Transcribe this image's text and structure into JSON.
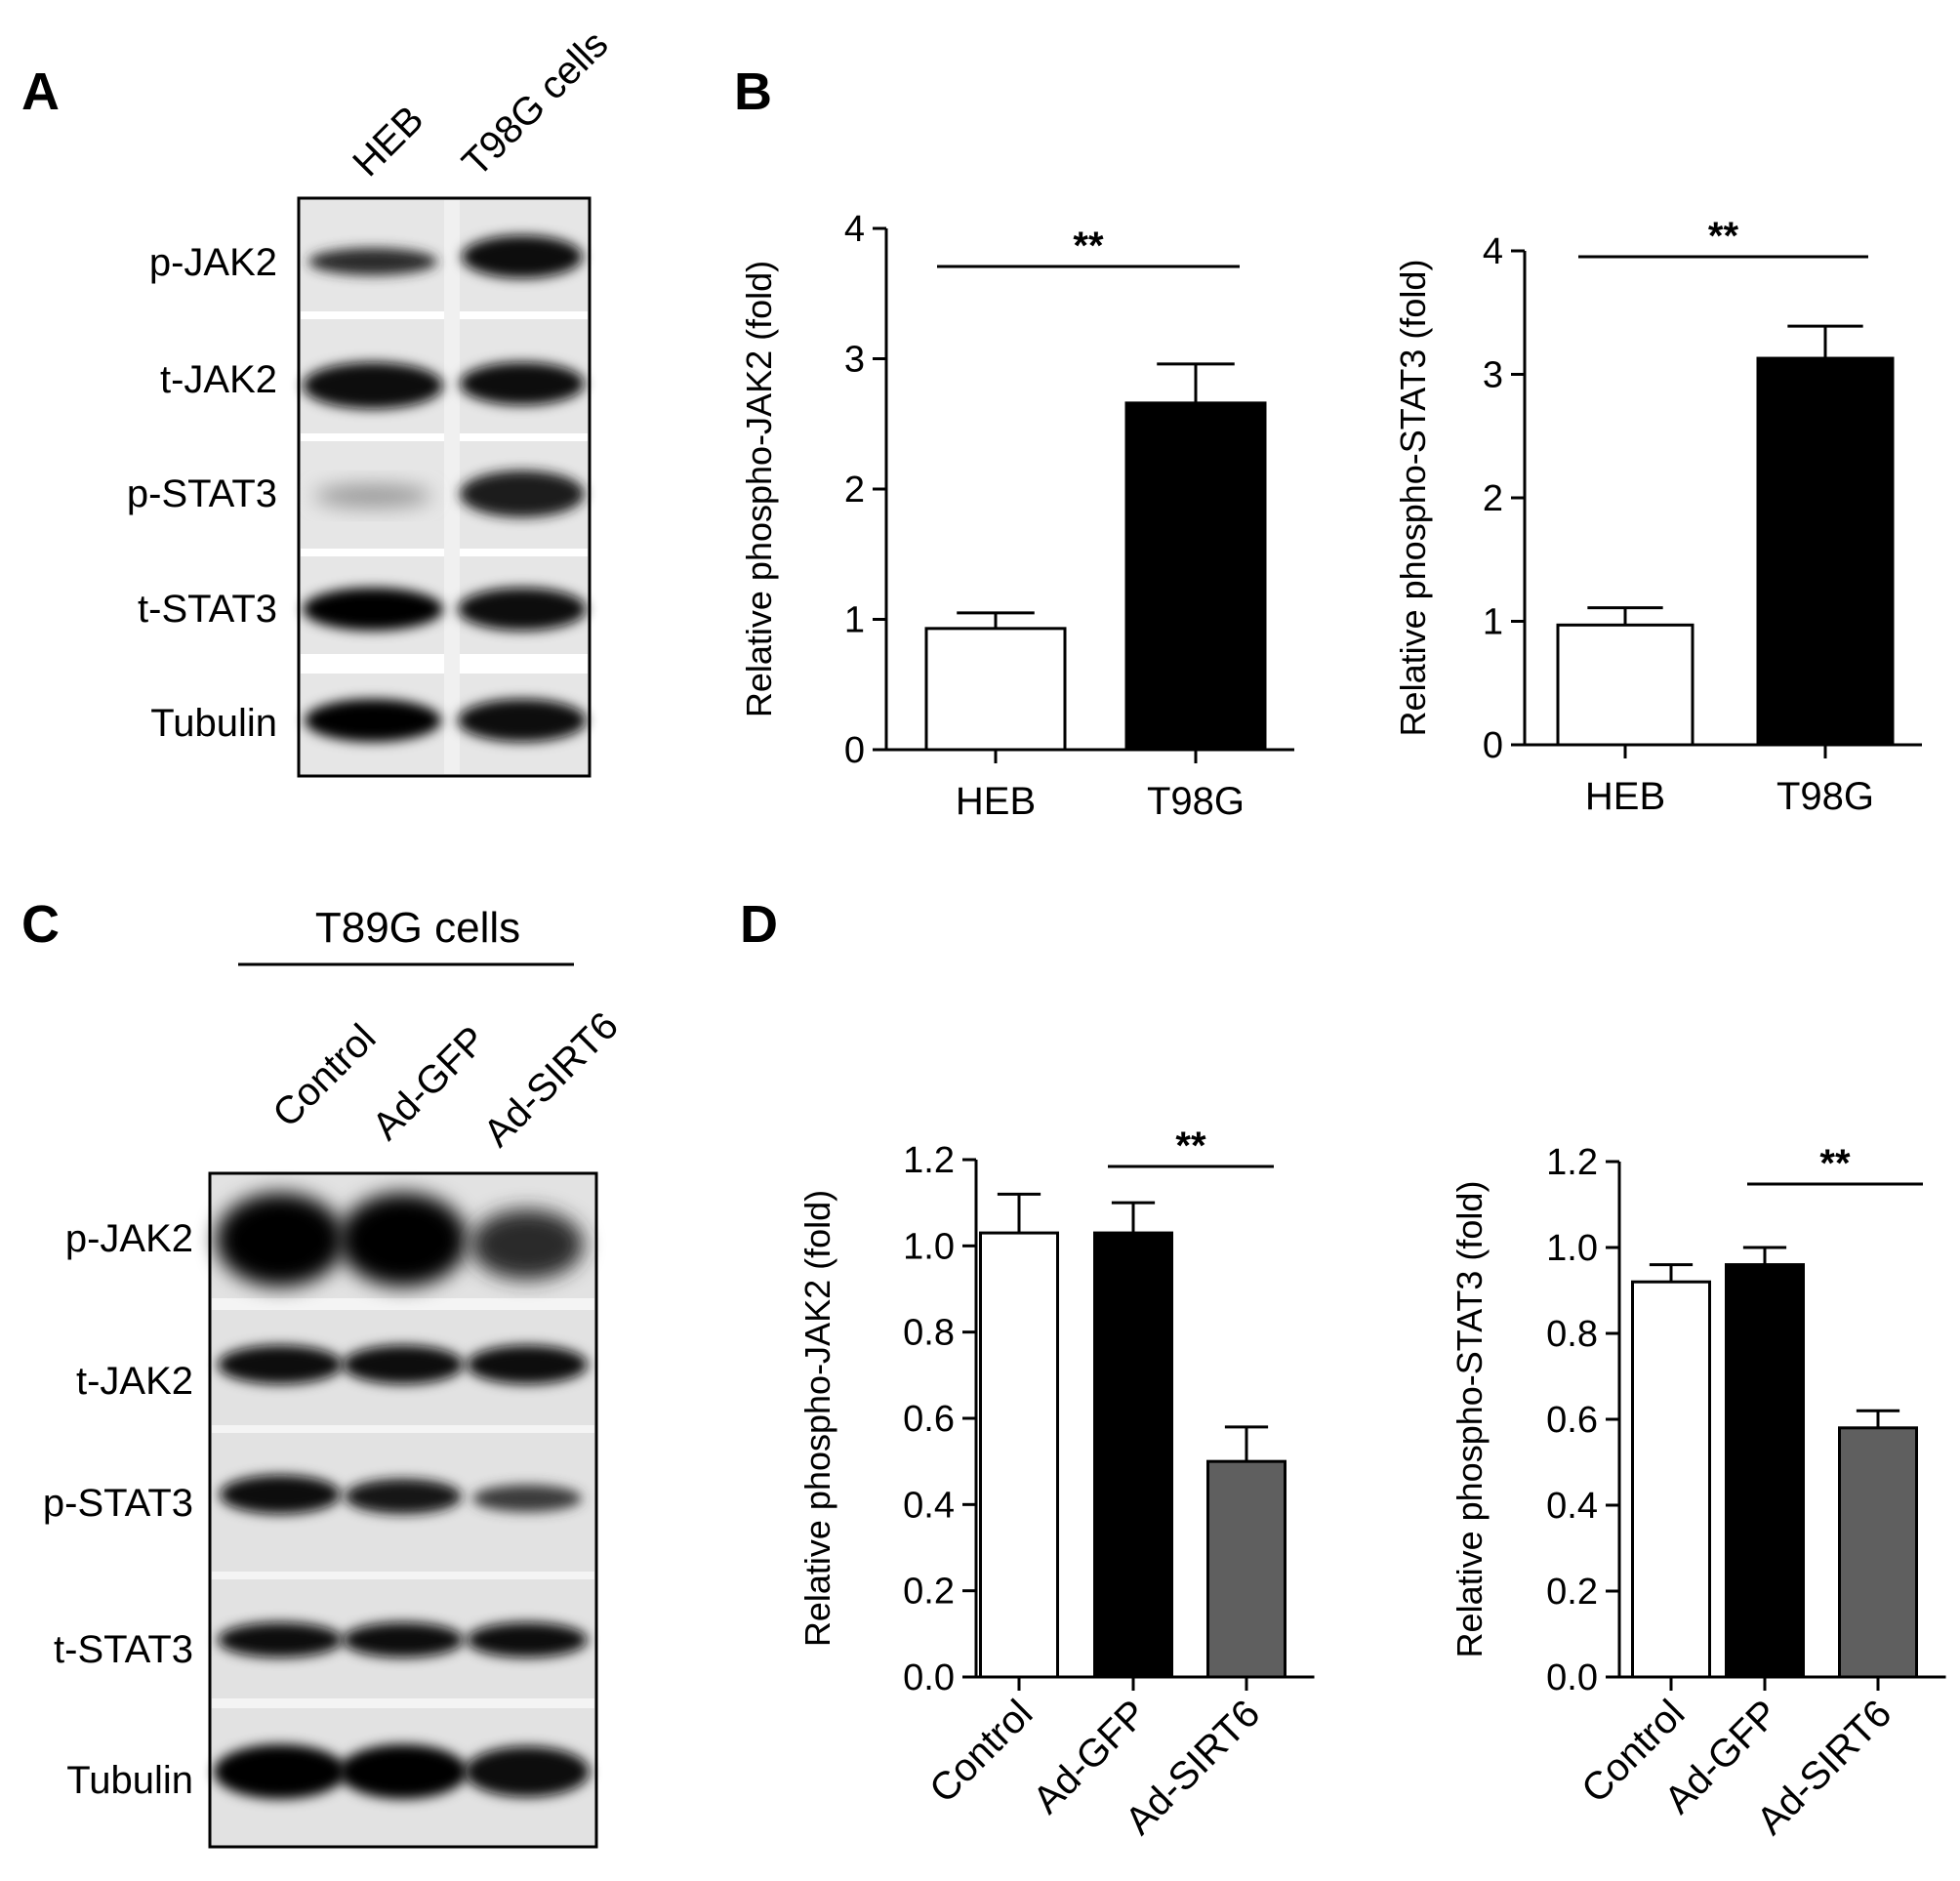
{
  "panels": {
    "A": "A",
    "B": "B",
    "C": "C",
    "D": "D"
  },
  "blot_a": {
    "lanes": [
      "HEB",
      "T98G cells"
    ],
    "rows": [
      "p-JAK2",
      "t-JAK2",
      "p-STAT3",
      "t-STAT3",
      "Tubulin"
    ]
  },
  "blot_c": {
    "group_label": "T89G cells",
    "lanes": [
      "Control",
      "Ad-GFP",
      "Ad-SIRT6"
    ],
    "rows": [
      "p-JAK2",
      "t-JAK2",
      "p-STAT3",
      "t-STAT3",
      "Tubulin"
    ]
  },
  "colors": {
    "white_bar": "#ffffff",
    "black_bar": "#000000",
    "gray_bar": "#5f5f5f"
  },
  "chart_data": [
    {
      "id": "B1",
      "type": "bar",
      "categories": [
        "HEB",
        "T98G"
      ],
      "values": [
        0.93,
        2.66
      ],
      "errors": [
        0.12,
        0.3
      ],
      "ylabel": "Relative phospho-JAK2 (fold)",
      "ylim": [
        0,
        4
      ],
      "yticks": [
        "0",
        "1",
        "2",
        "3",
        "4"
      ],
      "significance": "**",
      "bar_colors": [
        "#ffffff",
        "#000000"
      ]
    },
    {
      "id": "B2",
      "type": "bar",
      "categories": [
        "HEB",
        "T98G"
      ],
      "values": [
        0.97,
        3.13
      ],
      "errors": [
        0.14,
        0.26
      ],
      "ylabel": "Relative phospho-STAT3 (fold)",
      "ylim": [
        0,
        4
      ],
      "yticks": [
        "0",
        "1",
        "2",
        "3",
        "4"
      ],
      "significance": "**",
      "bar_colors": [
        "#ffffff",
        "#000000"
      ]
    },
    {
      "id": "D1",
      "type": "bar",
      "categories": [
        "Control",
        "Ad-GFP",
        "Ad-SIRT6"
      ],
      "values": [
        1.03,
        1.03,
        0.5
      ],
      "errors": [
        0.09,
        0.07,
        0.08
      ],
      "ylabel": "Relative phospho-JAK2 (fold)",
      "ylim": [
        0,
        1.2
      ],
      "yticks": [
        "0.0",
        "0.2",
        "0.4",
        "0.6",
        "0.8",
        "1.0",
        "1.2"
      ],
      "significance": "**",
      "bar_colors": [
        "#ffffff",
        "#000000",
        "#5f5f5f"
      ]
    },
    {
      "id": "D2",
      "type": "bar",
      "categories": [
        "Control",
        "Ad-GFP",
        "Ad-SIRT6"
      ],
      "values": [
        0.92,
        0.96,
        0.58
      ],
      "errors": [
        0.04,
        0.04,
        0.04
      ],
      "ylabel": "Relative phospho-STAT3 (fold)",
      "ylim": [
        0,
        1.2
      ],
      "yticks": [
        "0.0",
        "0.2",
        "0.4",
        "0.6",
        "0.8",
        "1.0",
        "1.2"
      ],
      "significance": "**",
      "bar_colors": [
        "#ffffff",
        "#000000",
        "#5f5f5f"
      ]
    }
  ]
}
